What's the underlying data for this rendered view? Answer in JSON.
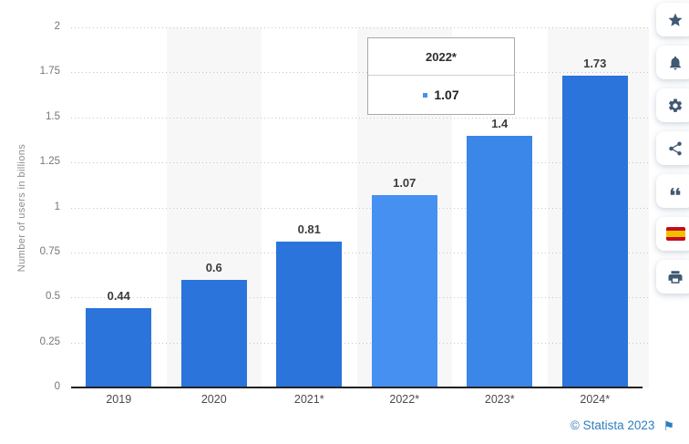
{
  "chart_data": {
    "type": "bar",
    "title": "",
    "categories": [
      "2019",
      "2020",
      "2021*",
      "2022*",
      "2023*",
      "2024*"
    ],
    "values": [
      0.44,
      0.6,
      0.81,
      1.07,
      1.4,
      1.73
    ],
    "value_labels": [
      "0.44",
      "0.6",
      "0.81",
      "1.07",
      "1.4",
      "1.73"
    ],
    "xlabel": "",
    "ylabel": "Number of users in billions",
    "ylim": [
      0,
      2
    ],
    "yticks": [
      "0",
      "0.25",
      "0.5",
      "0.75",
      "1",
      "1.25",
      "1.5",
      "1.75",
      "2"
    ],
    "grid": "dotted-horizontal",
    "legend": "none",
    "bar_colors": [
      "#2a74db",
      "#2a74db",
      "#2a74db",
      "#4690f2",
      "#3b86e9",
      "#2a74db"
    ],
    "banded_columns": [
      1,
      3,
      5
    ],
    "band_color": "#f7f7f8",
    "highlighted_category": "2022*"
  },
  "tooltip": {
    "title": "2022*",
    "value": "1.07",
    "marker_color": "#4690f2"
  },
  "sidebar": {
    "items": [
      {
        "icon": "star-icon",
        "name": "favorite"
      },
      {
        "icon": "bell-icon",
        "name": "notifications"
      },
      {
        "icon": "gear-icon",
        "name": "settings"
      },
      {
        "icon": "share-icon",
        "name": "share"
      },
      {
        "icon": "quote-icon",
        "name": "cite"
      },
      {
        "icon": "spain-flag-icon",
        "name": "language-spanish"
      },
      {
        "icon": "printer-icon",
        "name": "print"
      }
    ]
  },
  "footer": {
    "copyright": "© Statista 2023",
    "flag_icon": "report-flag-icon"
  },
  "colors": {
    "bar_normal": "#2a74db",
    "bar_highlight": "#4690f2",
    "icon": "#3f5873",
    "link_blue": "#2e7ebd",
    "axis": "#222222"
  }
}
